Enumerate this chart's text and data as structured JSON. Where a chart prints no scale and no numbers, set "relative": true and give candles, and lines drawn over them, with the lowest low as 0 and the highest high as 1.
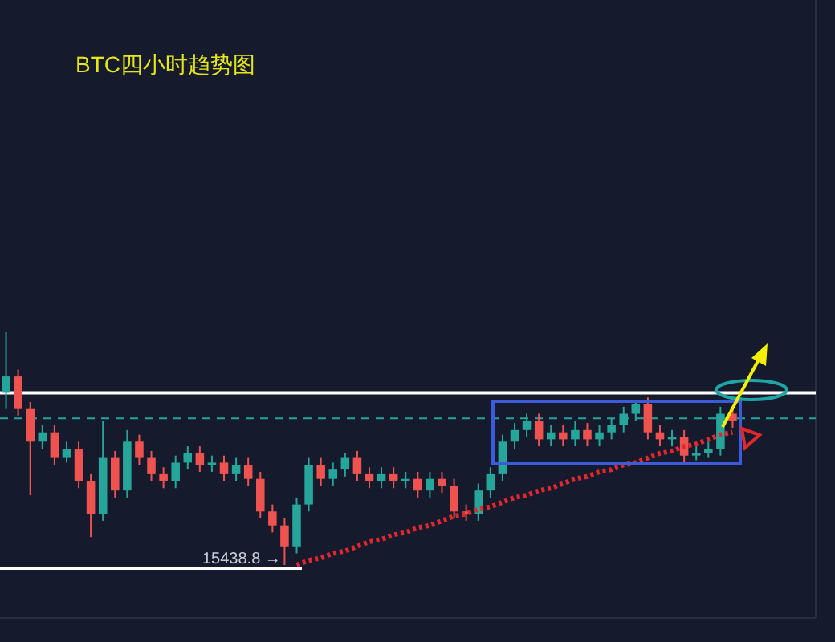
{
  "chart_data": {
    "type": "candlestick",
    "title": "BTC四小时趋势图",
    "relative": true,
    "categories": [
      null,
      null,
      null,
      null,
      null,
      null,
      null,
      null,
      null,
      null,
      null,
      null,
      null,
      null,
      null,
      null,
      null,
      null,
      null,
      null,
      null,
      null,
      null,
      null,
      null,
      null,
      null,
      null,
      null,
      null,
      null,
      null,
      null,
      null,
      null,
      null,
      null,
      null,
      null,
      null,
      null,
      null,
      null,
      null,
      null,
      null,
      null,
      null,
      null,
      null,
      null,
      null,
      null,
      null,
      null,
      null,
      null,
      null,
      null,
      null,
      null
    ],
    "ohlc": [
      [
        0.74,
        1.0,
        0.67,
        0.81
      ],
      [
        0.81,
        0.84,
        0.64,
        0.67
      ],
      [
        0.67,
        0.7,
        0.3,
        0.53
      ],
      [
        0.53,
        0.6,
        0.5,
        0.57
      ],
      [
        0.57,
        0.6,
        0.43,
        0.46
      ],
      [
        0.46,
        0.53,
        0.44,
        0.5
      ],
      [
        0.5,
        0.53,
        0.33,
        0.36
      ],
      [
        0.36,
        0.39,
        0.12,
        0.22
      ],
      [
        0.22,
        0.62,
        0.19,
        0.46
      ],
      [
        0.46,
        0.49,
        0.29,
        0.32
      ],
      [
        0.32,
        0.58,
        0.29,
        0.53
      ],
      [
        0.53,
        0.56,
        0.43,
        0.46
      ],
      [
        0.46,
        0.49,
        0.36,
        0.39
      ],
      [
        0.39,
        0.42,
        0.33,
        0.36
      ],
      [
        0.36,
        0.47,
        0.33,
        0.44
      ],
      [
        0.44,
        0.51,
        0.41,
        0.48
      ],
      [
        0.48,
        0.51,
        0.4,
        0.43
      ],
      [
        0.43,
        0.47,
        0.4,
        0.44
      ],
      [
        0.44,
        0.47,
        0.36,
        0.39
      ],
      [
        0.39,
        0.46,
        0.36,
        0.43
      ],
      [
        0.43,
        0.46,
        0.34,
        0.37
      ],
      [
        0.37,
        0.4,
        0.2,
        0.23
      ],
      [
        0.23,
        0.26,
        0.14,
        0.17
      ],
      [
        0.17,
        0.2,
        0,
        0.08
      ],
      [
        0.08,
        0.29,
        0.05,
        0.26
      ],
      [
        0.26,
        0.46,
        0.23,
        0.43
      ],
      [
        0.43,
        0.46,
        0.34,
        0.37
      ],
      [
        0.37,
        0.44,
        0.34,
        0.41
      ],
      [
        0.41,
        0.48,
        0.38,
        0.46
      ],
      [
        0.46,
        0.49,
        0.36,
        0.39
      ],
      [
        0.39,
        0.42,
        0.33,
        0.36
      ],
      [
        0.36,
        0.42,
        0.33,
        0.39
      ],
      [
        0.39,
        0.42,
        0.33,
        0.36
      ],
      [
        0.36,
        0.4,
        0.33,
        0.37
      ],
      [
        0.37,
        0.4,
        0.29,
        0.32
      ],
      [
        0.32,
        0.4,
        0.29,
        0.37
      ],
      [
        0.37,
        0.4,
        0.31,
        0.34
      ],
      [
        0.34,
        0.37,
        0.2,
        0.23
      ],
      [
        0.23,
        0.26,
        0.19,
        0.22
      ],
      [
        0.22,
        0.35,
        0.19,
        0.32
      ],
      [
        0.32,
        0.42,
        0.29,
        0.39
      ],
      [
        0.39,
        0.56,
        0.36,
        0.53
      ],
      [
        0.53,
        0.61,
        0.5,
        0.58
      ],
      [
        0.58,
        0.65,
        0.55,
        0.62
      ],
      [
        0.62,
        0.65,
        0.51,
        0.54
      ],
      [
        0.54,
        0.6,
        0.51,
        0.57
      ],
      [
        0.57,
        0.6,
        0.51,
        0.54
      ],
      [
        0.54,
        0.62,
        0.51,
        0.58
      ],
      [
        0.58,
        0.61,
        0.51,
        0.54
      ],
      [
        0.54,
        0.6,
        0.51,
        0.57
      ],
      [
        0.57,
        0.63,
        0.54,
        0.6
      ],
      [
        0.6,
        0.68,
        0.57,
        0.65
      ],
      [
        0.65,
        0.71,
        0.62,
        0.69
      ],
      [
        0.69,
        0.72,
        0.54,
        0.57
      ],
      [
        0.57,
        0.6,
        0.51,
        0.54
      ],
      [
        0.54,
        0.58,
        0.51,
        0.55
      ],
      [
        0.55,
        0.58,
        0.44,
        0.47
      ],
      [
        0.47,
        0.51,
        0.45,
        0.48
      ],
      [
        0.48,
        0.53,
        0.46,
        0.5
      ],
      [
        0.5,
        0.68,
        0.47,
        0.65
      ],
      [
        0.65,
        0.68,
        0.59,
        0.62
      ]
    ],
    "colors": [
      "#26a69a",
      "#ef5350",
      "#ef5350",
      "#26a69a",
      "#ef5350",
      "#26a69a",
      "#ef5350",
      "#ef5350",
      "#26a69a",
      "#ef5350",
      "#26a69a",
      "#ef5350",
      "#ef5350",
      "#ef5350",
      "#26a69a",
      "#26a69a",
      "#ef5350",
      "#26a69a",
      "#ef5350",
      "#26a69a",
      "#ef5350",
      "#ef5350",
      "#ef5350",
      "#ef5350",
      "#26a69a",
      "#26a69a",
      "#ef5350",
      "#26a69a",
      "#26a69a",
      "#ef5350",
      "#ef5350",
      "#26a69a",
      "#ef5350",
      "#26a69a",
      "#ef5350",
      "#26a69a",
      "#ef5350",
      "#ef5350",
      "#ef5350",
      "#26a69a",
      "#26a69a",
      "#26a69a",
      "#26a69a",
      "#26a69a",
      "#ef5350",
      "#26a69a",
      "#ef5350",
      "#26a69a",
      "#ef5350",
      "#26a69a",
      "#26a69a",
      "#26a69a",
      "#26a69a",
      "#ef5350",
      "#ef5350",
      "#26a69a",
      "#ef5350",
      "#26a69a",
      "#26a69a",
      "#26a69a",
      "#ef5350"
    ],
    "ref_lines": [
      {
        "axis": "y",
        "value": 0.74,
        "color": "#ffffff",
        "line_style": "solid"
      },
      {
        "axis": "y",
        "value": 0.63,
        "color": "#26a69a",
        "line_style": "dashed"
      }
    ],
    "series": [
      {
        "type": "line",
        "color": "#e0282e",
        "line_style": "dotted",
        "values": [
          null,
          null,
          null,
          null,
          null,
          null,
          null,
          null,
          null,
          null,
          null,
          null,
          null,
          null,
          null,
          null,
          null,
          null,
          null,
          null,
          null,
          null,
          null,
          null,
          0.0,
          0.02,
          0.03,
          0.05,
          0.06,
          0.08,
          0.1,
          0.11,
          0.13,
          0.14,
          0.16,
          0.17,
          0.19,
          0.21,
          0.22,
          0.24,
          0.25,
          0.27,
          0.29,
          0.3,
          0.32,
          0.33,
          0.35,
          0.37,
          0.38,
          0.4,
          0.41,
          0.43,
          0.44,
          0.46,
          0.48,
          0.49,
          0.51,
          0.52,
          0.54,
          0.56,
          0.57
        ]
      }
    ],
    "annotations": [
      "15438.8 →"
    ]
  }
}
